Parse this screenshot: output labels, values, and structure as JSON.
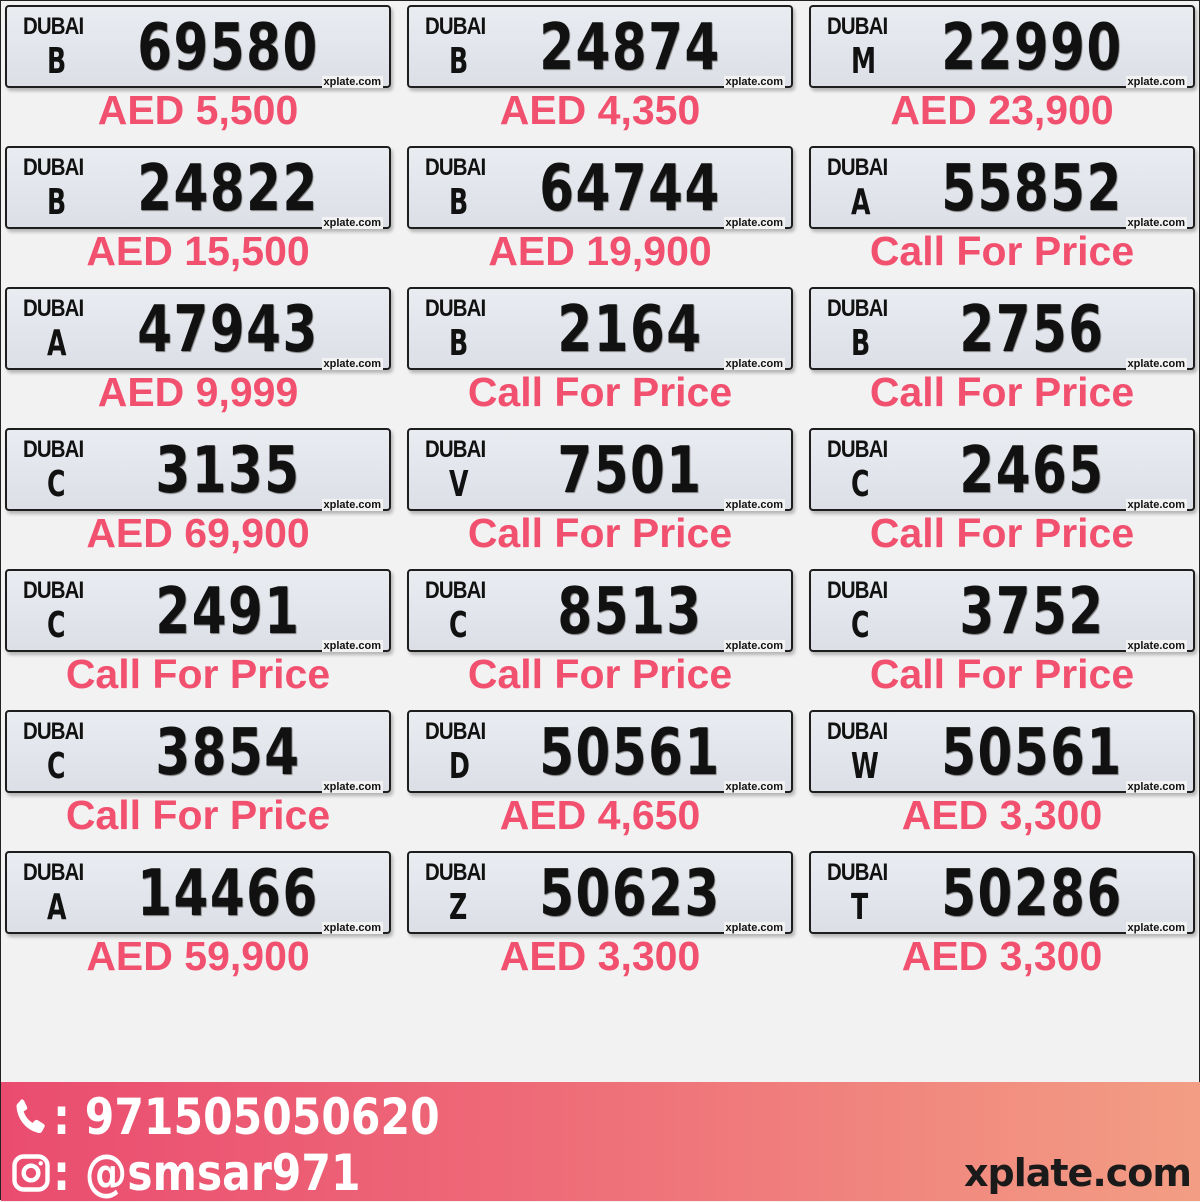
{
  "emirate": "DUBAI",
  "watermark": "xplate.com",
  "plates": [
    {
      "code": "B",
      "number": "69580",
      "price": "AED 5,500"
    },
    {
      "code": "B",
      "number": "24874",
      "price": "AED 4,350"
    },
    {
      "code": "M",
      "number": "22990",
      "price": "AED 23,900"
    },
    {
      "code": "B",
      "number": "24822",
      "price": "AED 15,500"
    },
    {
      "code": "B",
      "number": "64744",
      "price": "AED 19,900"
    },
    {
      "code": "A",
      "number": "55852",
      "price": "Call For Price"
    },
    {
      "code": "A",
      "number": "47943",
      "price": "AED 9,999"
    },
    {
      "code": "B",
      "number": "2164",
      "price": "Call For Price"
    },
    {
      "code": "B",
      "number": "2756",
      "price": "Call For Price"
    },
    {
      "code": "C",
      "number": "3135",
      "price": "AED 69,900"
    },
    {
      "code": "V",
      "number": "7501",
      "price": "Call For Price"
    },
    {
      "code": "C",
      "number": "2465",
      "price": "Call For Price"
    },
    {
      "code": "C",
      "number": "2491",
      "price": "Call For Price"
    },
    {
      "code": "C",
      "number": "8513",
      "price": "Call For Price"
    },
    {
      "code": "C",
      "number": "3752",
      "price": "Call For Price"
    },
    {
      "code": "C",
      "number": "3854",
      "price": "Call For Price"
    },
    {
      "code": "D",
      "number": "50561",
      "price": "AED 4,650"
    },
    {
      "code": "W",
      "number": "50561",
      "price": "AED 3,300"
    },
    {
      "code": "A",
      "number": "14466",
      "price": "AED 59,900"
    },
    {
      "code": "Z",
      "number": "50623",
      "price": "AED 3,300"
    },
    {
      "code": "T",
      "number": "50286",
      "price": "AED 3,300"
    }
  ],
  "footer": {
    "phone": ": 971505050620",
    "instagram": ": @smsar971",
    "brand": "xplate.com",
    "phone_icon": "phone-icon",
    "instagram_icon": "instagram-icon"
  },
  "colors": {
    "price": "#f2506f",
    "footer_start": "#ea4c6f",
    "footer_end": "#f39e84"
  }
}
